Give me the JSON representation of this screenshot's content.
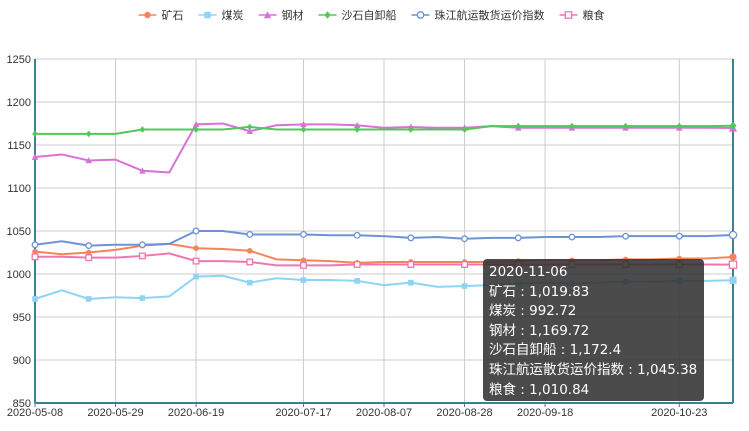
{
  "chart_data": {
    "type": "line",
    "x": [
      "2020-05-08",
      "2020-05-15",
      "2020-05-22",
      "2020-05-29",
      "2020-06-05",
      "2020-06-12",
      "2020-06-19",
      "2020-06-26",
      "2020-07-03",
      "2020-07-10",
      "2020-07-17",
      "2020-07-24",
      "2020-07-31",
      "2020-08-07",
      "2020-08-14",
      "2020-08-21",
      "2020-08-28",
      "2020-09-04",
      "2020-09-11",
      "2020-09-18",
      "2020-09-25",
      "2020-10-02",
      "2020-10-09",
      "2020-10-16",
      "2020-10-23",
      "2020-10-30",
      "2020-11-06"
    ],
    "xticks": [
      "2020-05-08",
      "2020-05-29",
      "2020-06-19",
      "2020-07-17",
      "2020-08-07",
      "2020-08-28",
      "2020-09-18",
      "2020-10-23"
    ],
    "ylim": [
      850,
      1250
    ],
    "yticks": [
      850,
      900,
      950,
      1000,
      1050,
      1100,
      1150,
      1200,
      1250
    ],
    "grid": true,
    "legend_position": "top-center",
    "series": [
      {
        "name": "矿石",
        "color": "#f5845c",
        "marker": "circle",
        "values": [
          1026,
          1023,
          1025,
          1028,
          1033,
          1035,
          1030,
          1029,
          1027,
          1017,
          1016,
          1015,
          1013,
          1014,
          1014,
          1014,
          1014,
          1014,
          1015,
          1016,
          1016,
          1016,
          1017,
          1017,
          1018,
          1018,
          1019.83
        ]
      },
      {
        "name": "煤炭",
        "color": "#8fd3f5",
        "marker": "square",
        "values": [
          971,
          981,
          971,
          973,
          972,
          974,
          997,
          998,
          990,
          995,
          993,
          993,
          992,
          987,
          990,
          985,
          986,
          987,
          989,
          990,
          989,
          990,
          991,
          991,
          992,
          992,
          992.72
        ]
      },
      {
        "name": "钢材",
        "color": "#d872d8",
        "marker": "triangle",
        "values": [
          1136,
          1139,
          1132,
          1133,
          1120,
          1118,
          1174,
          1175,
          1166,
          1173,
          1174,
          1174,
          1173,
          1170,
          1171,
          1170,
          1170,
          1172,
          1170,
          1170,
          1170,
          1170,
          1170,
          1170,
          1170,
          1170,
          1169.72
        ]
      },
      {
        "name": "沙石自卸船",
        "color": "#52c858",
        "marker": "diamond",
        "values": [
          1163,
          1163,
          1163,
          1163,
          1168,
          1168,
          1168,
          1168,
          1171,
          1168,
          1168,
          1168,
          1168,
          1168,
          1168,
          1168,
          1168,
          1172,
          1172,
          1172,
          1172,
          1172,
          1172,
          1172,
          1172,
          1172,
          1172.4
        ]
      },
      {
        "name": "珠江航运散货运价指数",
        "color": "#6d93d6",
        "marker": "empty-circle",
        "values": [
          1034,
          1038,
          1033,
          1034,
          1034,
          1035,
          1050,
          1050,
          1046,
          1046,
          1046,
          1045,
          1045,
          1044,
          1042,
          1043,
          1041,
          1042,
          1042,
          1043,
          1043,
          1043,
          1044,
          1044,
          1044,
          1044,
          1045.38
        ]
      },
      {
        "name": "粮食",
        "color": "#ee77ae",
        "marker": "empty-square",
        "values": [
          1020,
          1020,
          1019,
          1019,
          1021,
          1024,
          1015,
          1015,
          1014,
          1010,
          1010,
          1010,
          1011,
          1011,
          1011,
          1011,
          1011,
          1011,
          1011,
          1011,
          1011,
          1011,
          1011,
          1011,
          1011,
          1011,
          1010.84
        ]
      }
    ]
  },
  "tooltip": {
    "date": "2020-11-06",
    "rows": [
      {
        "label": "矿石 : 1,019.83"
      },
      {
        "label": "煤炭 : 992.72"
      },
      {
        "label": "钢材 : 1,169.72"
      },
      {
        "label": "沙石自卸船 : 1,172.4"
      },
      {
        "label": "珠江航运散货运价指数 : 1,045.38"
      },
      {
        "label": "粮食 : 1,010.84"
      }
    ]
  }
}
